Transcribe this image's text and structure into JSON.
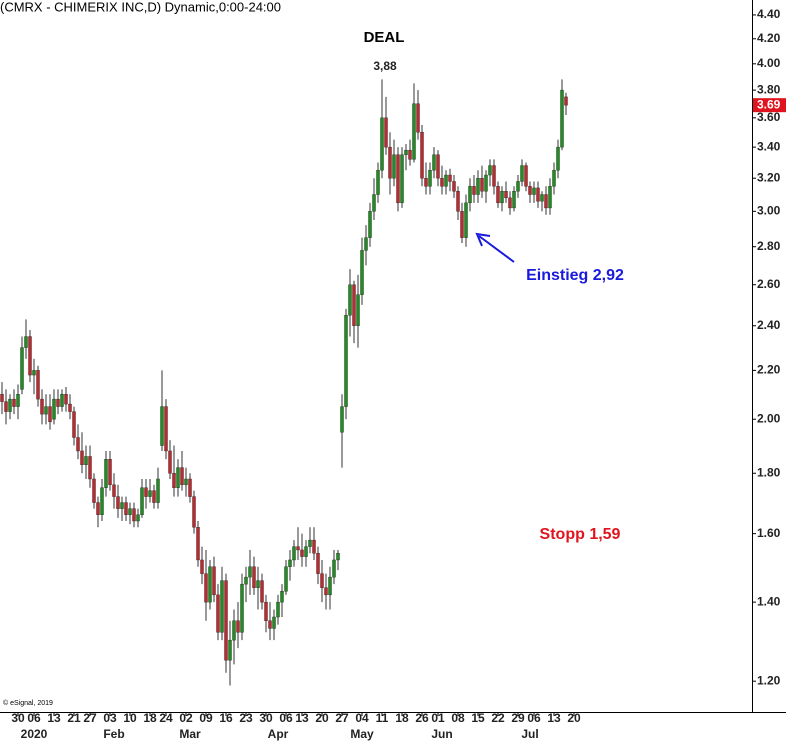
{
  "chart_data": {
    "type": "candlestick",
    "title": "(CMRX - CHIMERIX INC,D) Dynamic,0:00-24:00",
    "copyright": "© eSignal, 2019",
    "annotations": {
      "deal": "DEAL",
      "high_label": "3,88",
      "entry": "Einstieg 2,92",
      "stop": "Stopp 1,59"
    },
    "log_scale": true,
    "grid": false,
    "up_color": "#1e8f1e",
    "down_color": "#c0282d",
    "last_price_color": "#e0141e",
    "ylim": [
      1.13,
      4.53
    ],
    "yticks": [
      {
        "value": 1.2,
        "label": "1.20"
      },
      {
        "value": 1.4,
        "label": "1.40"
      },
      {
        "value": 1.6,
        "label": "1.60"
      },
      {
        "value": 1.8,
        "label": "1.80"
      },
      {
        "value": 2.0,
        "label": "2.00"
      },
      {
        "value": 2.2,
        "label": "2.20"
      },
      {
        "value": 2.4,
        "label": "2.40"
      },
      {
        "value": 2.6,
        "label": "2.60"
      },
      {
        "value": 2.8,
        "label": "2.80"
      },
      {
        "value": 3.0,
        "label": "3.00"
      },
      {
        "value": 3.2,
        "label": "3.20"
      },
      {
        "value": 3.4,
        "label": "3.40"
      },
      {
        "value": 3.6,
        "label": "3.60"
      },
      {
        "value": 3.8,
        "label": "3.80"
      },
      {
        "value": 4.0,
        "label": "4.00"
      },
      {
        "value": 4.2,
        "label": "4.20"
      },
      {
        "value": 4.4,
        "label": "4.40"
      }
    ],
    "categories": [
      null,
      null,
      null,
      null,
      "30",
      null,
      null,
      null,
      "06",
      null,
      null,
      null,
      null,
      "13",
      null,
      null,
      null,
      null,
      "21",
      null,
      null,
      null,
      "27",
      null,
      null,
      null,
      null,
      "03",
      null,
      null,
      null,
      null,
      "10",
      null,
      null,
      null,
      null,
      "18",
      null,
      null,
      null,
      "24",
      null,
      null,
      null,
      null,
      "02",
      null,
      null,
      null,
      null,
      "09",
      null,
      null,
      null,
      null,
      "16",
      null,
      null,
      null,
      null,
      "23",
      null,
      null,
      null,
      null,
      "30",
      null,
      null,
      null,
      null,
      "06",
      null,
      null,
      null,
      "13",
      null,
      null,
      null,
      null,
      "20",
      null,
      null,
      null,
      null,
      "27",
      null,
      null,
      null,
      null,
      "04",
      null,
      null,
      null,
      null,
      "11",
      null,
      null,
      null,
      null,
      "18",
      null,
      null,
      null,
      null,
      "26",
      null,
      null,
      null,
      "01",
      null,
      null,
      null,
      null,
      "08",
      null,
      null,
      null,
      null,
      "15",
      null,
      null,
      null,
      null,
      "22",
      null,
      null,
      null,
      null,
      "29",
      null,
      null,
      null,
      "06",
      null,
      null,
      null,
      null,
      "13",
      null,
      null,
      null,
      null,
      "20"
    ],
    "month_labels": [
      null,
      null,
      null,
      null,
      null,
      null,
      null,
      null,
      "2020",
      null,
      null,
      null,
      null,
      null,
      null,
      null,
      null,
      null,
      null,
      null,
      null,
      null,
      null,
      null,
      null,
      null,
      null,
      null,
      "Feb",
      null,
      null,
      null,
      null,
      null,
      null,
      null,
      null,
      null,
      null,
      null,
      null,
      null,
      null,
      null,
      null,
      null,
      null,
      "Mar",
      null,
      null,
      null,
      null,
      null,
      null,
      null,
      null,
      null,
      null,
      null,
      null,
      null,
      null,
      null,
      null,
      null,
      null,
      null,
      null,
      null,
      "Apr",
      null,
      null,
      null,
      null,
      null,
      null,
      null,
      null,
      null,
      null,
      null,
      null,
      null,
      null,
      null,
      null,
      null,
      null,
      null,
      null,
      "May",
      null,
      null,
      null,
      null,
      null,
      null,
      null,
      null,
      null,
      null,
      null,
      null,
      null,
      null,
      null,
      null,
      null,
      null,
      null,
      "Jun",
      null,
      null,
      null,
      null,
      null,
      null,
      null,
      null,
      null,
      null,
      null,
      null,
      null,
      null,
      null,
      null,
      null,
      null,
      null,
      null,
      null,
      "Jul",
      null,
      null,
      null,
      null,
      null,
      null,
      null,
      null,
      null,
      null,
      null
    ],
    "open": [
      2.1,
      2.07,
      2.03,
      2.08,
      2.05,
      2.12,
      2.3,
      2.35,
      2.18,
      2.2,
      2.08,
      2.02,
      2.05,
      2.0,
      2.08,
      2.05,
      2.1,
      2.06,
      2.03,
      1.93,
      1.88,
      1.83,
      1.86,
      1.78,
      1.7,
      1.66,
      1.75,
      1.85,
      1.76,
      1.72,
      1.68,
      1.7,
      1.66,
      1.68,
      1.64,
      1.66,
      1.75,
      1.72,
      1.74,
      1.7,
      1.9,
      2.05,
      1.88,
      1.8,
      1.75,
      1.82,
      1.76,
      1.78,
      1.72,
      1.62,
      1.52,
      1.48,
      1.4,
      1.5,
      1.42,
      1.32,
      1.46,
      1.25,
      1.3,
      1.35,
      1.32,
      1.45,
      1.47,
      1.5,
      1.44,
      1.46,
      1.4,
      1.35,
      1.33,
      1.36,
      1.4,
      1.43,
      1.5,
      1.52,
      1.56,
      1.55,
      1.53,
      1.56,
      1.58,
      1.54,
      1.48,
      1.44,
      1.42,
      1.47,
      1.52,
      1.95,
      2.05,
      2.45,
      2.6,
      2.4,
      2.55,
      2.78,
      2.85,
      3.0,
      3.1,
      3.25,
      3.6,
      3.4,
      3.2,
      3.35,
      3.05,
      3.35,
      3.38,
      3.32,
      3.7,
      3.5,
      3.2,
      3.15,
      3.25,
      3.35,
      3.2,
      3.15,
      3.22,
      3.18,
      3.12,
      3.0,
      2.85,
      3.05,
      3.15,
      3.1,
      3.2,
      3.12,
      3.22,
      3.28,
      3.15,
      3.05,
      3.12,
      3.08,
      3.02,
      3.12,
      3.18,
      3.28,
      3.15,
      3.1,
      3.14,
      3.06,
      3.1,
      3.02,
      3.15,
      3.25,
      3.4,
      3.75,
      null,
      null
    ],
    "high": [
      2.15,
      2.12,
      2.1,
      2.12,
      2.14,
      2.35,
      2.43,
      2.38,
      2.25,
      2.22,
      2.12,
      2.1,
      2.1,
      2.12,
      2.12,
      2.12,
      2.13,
      2.1,
      2.05,
      1.98,
      1.95,
      1.9,
      1.9,
      1.8,
      1.72,
      1.78,
      1.88,
      1.88,
      1.8,
      1.76,
      1.72,
      1.72,
      1.7,
      1.7,
      1.68,
      1.78,
      1.78,
      1.78,
      1.76,
      1.82,
      2.2,
      2.08,
      1.92,
      1.9,
      1.85,
      1.88,
      1.82,
      1.8,
      1.74,
      1.64,
      1.56,
      1.55,
      1.52,
      1.53,
      1.45,
      1.5,
      1.48,
      1.35,
      1.38,
      1.4,
      1.48,
      1.5,
      1.55,
      1.53,
      1.5,
      1.48,
      1.42,
      1.4,
      1.38,
      1.42,
      1.45,
      1.52,
      1.55,
      1.58,
      1.62,
      1.6,
      1.58,
      1.62,
      1.62,
      1.56,
      1.52,
      1.48,
      1.5,
      1.55,
      1.55,
      2.1,
      2.48,
      2.68,
      2.62,
      2.65,
      2.85,
      2.92,
      3.05,
      3.2,
      3.3,
      3.88,
      3.75,
      3.5,
      3.45,
      3.4,
      3.4,
      3.42,
      3.45,
      3.85,
      3.8,
      3.55,
      3.3,
      3.3,
      3.4,
      3.38,
      3.28,
      3.25,
      3.26,
      3.22,
      3.15,
      3.05,
      3.1,
      3.2,
      3.22,
      3.25,
      3.28,
      3.25,
      3.32,
      3.32,
      3.18,
      3.15,
      3.18,
      3.12,
      3.15,
      3.22,
      3.32,
      3.3,
      3.18,
      3.18,
      3.18,
      3.12,
      3.15,
      3.2,
      3.3,
      3.45,
      3.88,
      3.78,
      null,
      null
    ],
    "low": [
      2.02,
      1.98,
      2.0,
      2.02,
      2.0,
      2.1,
      2.25,
      2.15,
      2.1,
      2.05,
      1.98,
      1.98,
      1.96,
      1.98,
      2.02,
      2.03,
      2.03,
      2.0,
      1.9,
      1.85,
      1.8,
      1.78,
      1.75,
      1.68,
      1.62,
      1.64,
      1.72,
      1.74,
      1.68,
      1.65,
      1.64,
      1.64,
      1.63,
      1.62,
      1.62,
      1.65,
      1.68,
      1.7,
      1.68,
      1.68,
      1.88,
      1.85,
      1.78,
      1.72,
      1.72,
      1.74,
      1.72,
      1.7,
      1.6,
      1.5,
      1.45,
      1.35,
      1.38,
      1.4,
      1.3,
      1.3,
      1.22,
      1.19,
      1.24,
      1.28,
      1.3,
      1.4,
      1.42,
      1.42,
      1.38,
      1.38,
      1.32,
      1.3,
      1.3,
      1.34,
      1.36,
      1.42,
      1.46,
      1.5,
      1.52,
      1.5,
      1.5,
      1.54,
      1.52,
      1.45,
      1.4,
      1.38,
      1.38,
      1.45,
      1.49,
      1.82,
      2.0,
      2.35,
      2.32,
      2.3,
      2.5,
      2.7,
      2.8,
      2.95,
      3.05,
      3.2,
      3.35,
      3.1,
      3.15,
      3.0,
      3.02,
      3.25,
      3.28,
      3.3,
      3.45,
      3.15,
      3.1,
      3.1,
      3.2,
      3.15,
      3.1,
      3.1,
      3.12,
      3.08,
      2.95,
      2.82,
      2.8,
      3.0,
      3.05,
      3.05,
      3.08,
      3.05,
      3.15,
      3.1,
      3.02,
      3.0,
      3.05,
      2.98,
      3.0,
      3.08,
      3.15,
      3.12,
      3.05,
      3.05,
      3.02,
      3.0,
      2.98,
      2.98,
      3.1,
      3.2,
      3.38,
      3.62,
      null,
      null
    ],
    "close": [
      2.07,
      2.03,
      2.08,
      2.05,
      2.1,
      2.3,
      2.35,
      2.18,
      2.2,
      2.08,
      2.02,
      2.05,
      1.99,
      2.08,
      2.05,
      2.1,
      2.06,
      2.03,
      1.93,
      1.88,
      1.83,
      1.86,
      1.78,
      1.7,
      1.66,
      1.75,
      1.85,
      1.76,
      1.72,
      1.68,
      1.7,
      1.66,
      1.68,
      1.64,
      1.66,
      1.75,
      1.72,
      1.74,
      1.7,
      1.78,
      2.05,
      1.88,
      1.8,
      1.75,
      1.82,
      1.76,
      1.78,
      1.72,
      1.62,
      1.52,
      1.48,
      1.4,
      1.5,
      1.42,
      1.32,
      1.46,
      1.25,
      1.3,
      1.35,
      1.32,
      1.45,
      1.47,
      1.5,
      1.44,
      1.46,
      1.4,
      1.35,
      1.33,
      1.36,
      1.4,
      1.43,
      1.5,
      1.52,
      1.56,
      1.55,
      1.53,
      1.56,
      1.58,
      1.54,
      1.48,
      1.44,
      1.42,
      1.47,
      1.52,
      1.54,
      2.05,
      2.45,
      2.6,
      2.4,
      2.55,
      2.78,
      2.85,
      3.0,
      3.1,
      3.25,
      3.6,
      3.4,
      3.2,
      3.35,
      3.05,
      3.35,
      3.38,
      3.32,
      3.7,
      3.5,
      3.2,
      3.15,
      3.25,
      3.35,
      3.2,
      3.15,
      3.22,
      3.18,
      3.12,
      3.0,
      2.85,
      3.05,
      3.15,
      3.1,
      3.2,
      3.12,
      3.22,
      3.28,
      3.15,
      3.05,
      3.12,
      3.08,
      3.02,
      3.12,
      3.18,
      3.28,
      3.15,
      3.1,
      3.14,
      3.06,
      3.1,
      3.02,
      3.15,
      3.25,
      3.4,
      3.8,
      3.69,
      null,
      null
    ]
  }
}
